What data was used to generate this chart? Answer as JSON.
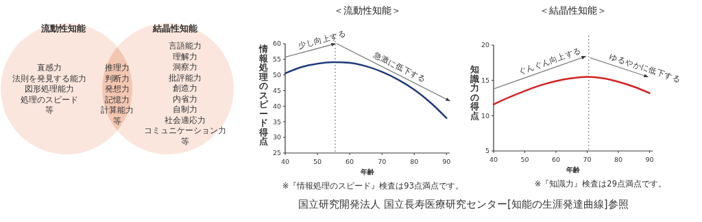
{
  "chart_data": [
    {
      "type": "other",
      "annotations": [
        "流動性知能",
        "結晶性知能",
        "直感力",
        "法則を発見する能力",
        "図形処理能力",
        "処理のスピード",
        "等",
        "推理力",
        "判断力",
        "発想力",
        "記憶力",
        "計算能力",
        "等",
        "言語能力",
        "理解力",
        "洞察力",
        "批評能力",
        "創造力",
        "内省力",
        "自制力",
        "社会適応力",
        "コミュニケーション力",
        "等"
      ]
    },
    {
      "type": "line",
      "title": "＜流動性知能＞",
      "xlabel": "年齢",
      "ylabel": "情報処理のスピード得点",
      "x": [
        40,
        45,
        50,
        55,
        60,
        65,
        70,
        75,
        80,
        85,
        90
      ],
      "series": [
        {
          "color": "#1f3a7a",
          "values": [
            50.5,
            52.5,
            53.6,
            54.1,
            53.9,
            52.8,
            51,
            48.5,
            45.3,
            41.2,
            36.2
          ]
        },
        {
          "color": "#808080",
          "x": [
            40,
            55.5
          ],
          "values": [
            55.7,
            60
          ]
        },
        {
          "color": "#808080",
          "x": [
            56,
            91
          ],
          "values": [
            60,
            41.7
          ]
        }
      ],
      "xlim": [
        40,
        91
      ],
      "ylim": [
        25,
        60
      ],
      "xticks": [
        40,
        50,
        60,
        70,
        80,
        90
      ],
      "yticks": [
        25,
        30,
        35,
        40,
        45,
        50,
        55,
        60
      ],
      "ref_lines": [
        {
          "axis": "x",
          "value": 55.5,
          "line_style": "dotted",
          "color": "#808080"
        }
      ],
      "annotations": [
        "少し向上する",
        "急激に低下する",
        "※『情報処理のスピード』検査は93点満点です。",
        "国立研究開発法人 国立長寿医療研究センター[知能の生涯発達曲線]参照"
      ]
    },
    {
      "type": "line",
      "title": "＜結晶性知能＞",
      "xlabel": "年齢",
      "ylabel": "知識力の得点",
      "x": [
        40,
        45,
        50,
        55,
        60,
        65,
        70,
        75,
        80,
        85,
        90
      ],
      "series": [
        {
          "color": "#d42020",
          "values": [
            11.6,
            12.6,
            13.5,
            14.3,
            14.9,
            15.3,
            15.5,
            15.3,
            14.8,
            14.1,
            13.2
          ]
        },
        {
          "color": "#808080",
          "x": [
            40,
            69.5
          ],
          "values": [
            13.8,
            18.4
          ]
        },
        {
          "color": "#808080",
          "x": [
            71,
            89.5
          ],
          "values": [
            18.2,
            15.5
          ]
        }
      ],
      "xlim": [
        40,
        91
      ],
      "ylim": [
        5,
        20
      ],
      "xticks": [
        40,
        50,
        60,
        70,
        80,
        90
      ],
      "yticks": [
        5,
        10,
        15,
        20
      ],
      "ref_lines": [
        {
          "axis": "x",
          "value": 70.5,
          "line_style": "dotted",
          "color": "#808080"
        }
      ],
      "annotations": [
        "ぐんぐん向上する",
        "ゆるやかに低下する",
        "※『知識力』検査は29点満点です。"
      ]
    }
  ]
}
